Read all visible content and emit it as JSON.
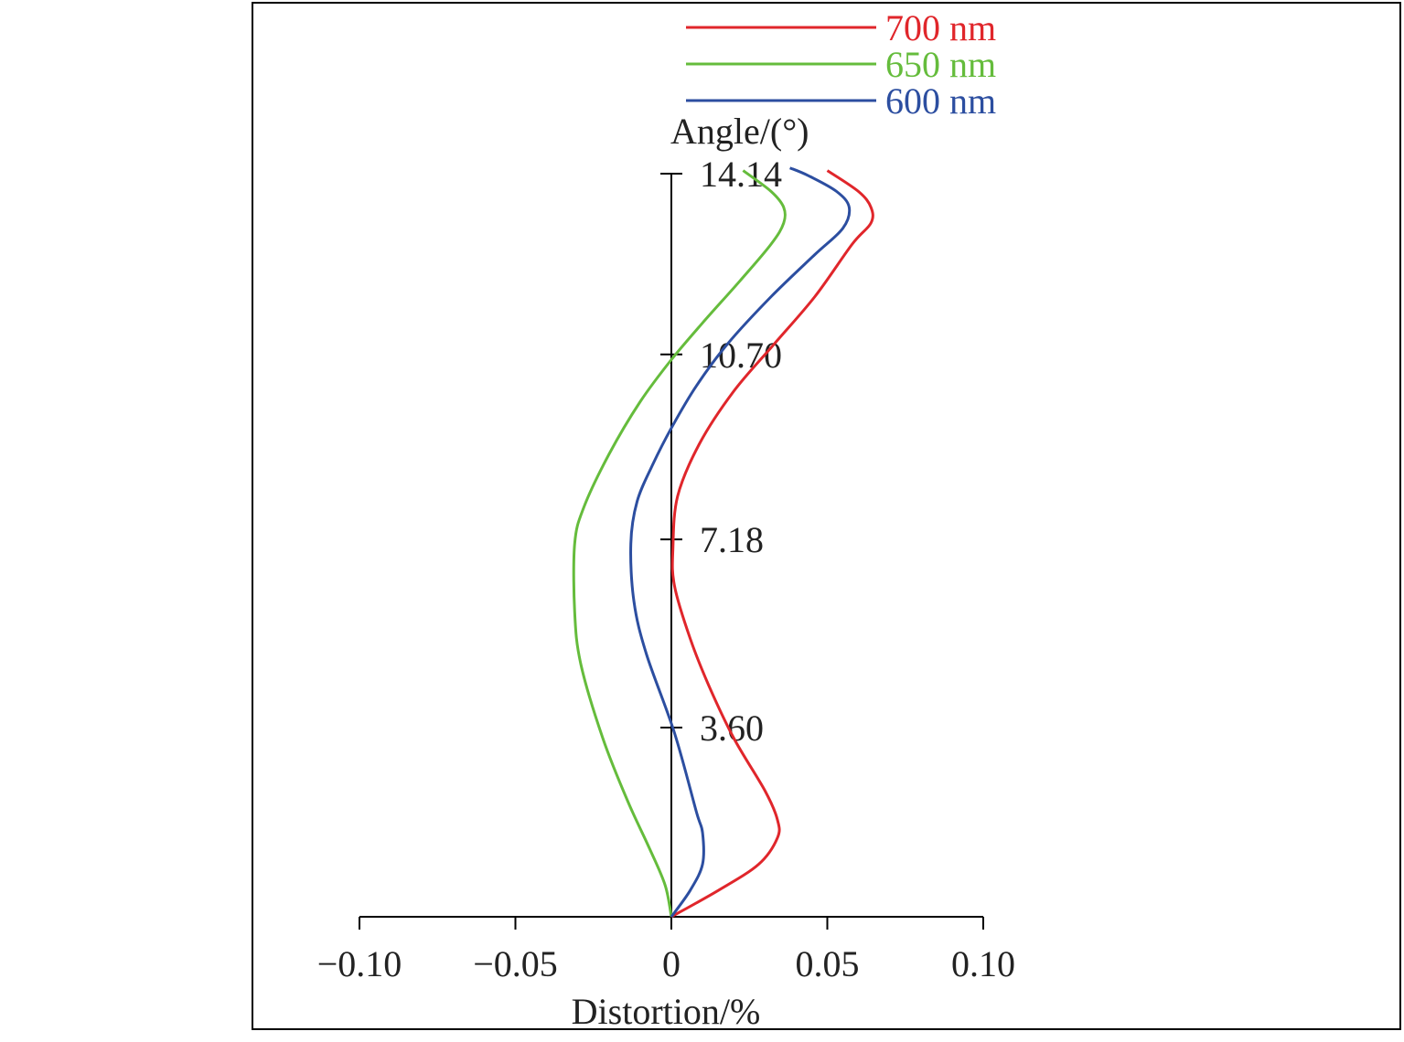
{
  "chart_data": {
    "type": "line",
    "orientation": "vertical-field",
    "xlabel": "Distortion/%",
    "ylabel": "Angle/(°)",
    "xlim": [
      -0.1,
      0.1
    ],
    "ylim": [
      0,
      14.14
    ],
    "x_ticks": [
      -0.1,
      -0.05,
      0,
      0.05,
      0.1
    ],
    "x_tick_labels": [
      "−0.10",
      "−0.05",
      "0",
      "0.05",
      "0.10"
    ],
    "y_ticks": [
      3.6,
      7.18,
      10.7,
      14.14
    ],
    "y_tick_labels": [
      "3.60",
      "7.18",
      "10.70",
      "14.14"
    ],
    "legend_position": "top-right",
    "series": [
      {
        "name": "700 nm",
        "color": "#e0262b",
        "points": [
          [
            0,
            0
          ],
          [
            0.015,
            0.5
          ],
          [
            0.028,
            1.0
          ],
          [
            0.034,
            1.5
          ],
          [
            0.034,
            1.85
          ],
          [
            0.03,
            2.4
          ],
          [
            0.02,
            3.4
          ],
          [
            0.012,
            4.4
          ],
          [
            0.006,
            5.3
          ],
          [
            0.001,
            6.3
          ],
          [
            0.0005,
            7.0
          ],
          [
            0.002,
            8.0
          ],
          [
            0.009,
            9.0
          ],
          [
            0.02,
            10.0
          ],
          [
            0.033,
            10.9
          ],
          [
            0.046,
            11.8
          ],
          [
            0.058,
            12.8
          ],
          [
            0.064,
            13.2
          ],
          [
            0.064,
            13.5
          ],
          [
            0.06,
            13.8
          ],
          [
            0.05,
            14.2
          ]
        ]
      },
      {
        "name": "650 nm",
        "color": "#65bc3c",
        "points": [
          [
            0,
            0
          ],
          [
            -0.002,
            0.6
          ],
          [
            -0.007,
            1.3
          ],
          [
            -0.014,
            2.2
          ],
          [
            -0.022,
            3.4
          ],
          [
            -0.029,
            4.8
          ],
          [
            -0.031,
            5.8
          ],
          [
            -0.031,
            7.1
          ],
          [
            -0.028,
            7.8
          ],
          [
            -0.02,
            8.8
          ],
          [
            -0.01,
            9.8
          ],
          [
            0,
            10.6
          ],
          [
            0.01,
            11.3
          ],
          [
            0.022,
            12.1
          ],
          [
            0.032,
            12.8
          ],
          [
            0.036,
            13.2
          ],
          [
            0.036,
            13.5
          ],
          [
            0.032,
            13.8
          ],
          [
            0.023,
            14.2
          ]
        ]
      },
      {
        "name": "600 nm",
        "color": "#2c4ea0",
        "points": [
          [
            0,
            0
          ],
          [
            0.006,
            0.5
          ],
          [
            0.01,
            1.0
          ],
          [
            0.01,
            1.6
          ],
          [
            0.008,
            2.0
          ],
          [
            0.001,
            3.5
          ],
          [
            -0.008,
            5.0
          ],
          [
            -0.012,
            6.0
          ],
          [
            -0.013,
            7.1
          ],
          [
            -0.011,
            7.9
          ],
          [
            -0.006,
            8.6
          ],
          [
            0,
            9.3
          ],
          [
            0.008,
            10.1
          ],
          [
            0.018,
            10.9
          ],
          [
            0.032,
            11.8
          ],
          [
            0.046,
            12.6
          ],
          [
            0.055,
            13.1
          ],
          [
            0.057,
            13.5
          ],
          [
            0.053,
            13.8
          ],
          [
            0.044,
            14.1
          ],
          [
            0.038,
            14.25
          ]
        ]
      }
    ]
  }
}
